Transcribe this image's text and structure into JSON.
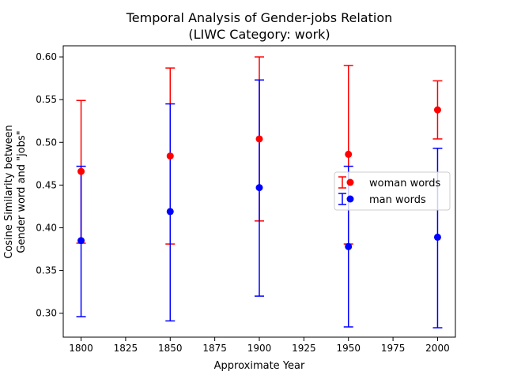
{
  "chart_data": {
    "type": "scatter",
    "title_lines": [
      "Temporal Analysis of Gender-jobs Relation",
      "(LIWC Category: work)"
    ],
    "xlabel": "Approximate Year",
    "ylabel_lines": [
      "Cosine Similarity between",
      "Gender word and \"jobs\""
    ],
    "xlim": [
      1790,
      2010
    ],
    "ylim": [
      0.272,
      0.613
    ],
    "xticks": [
      1800,
      1825,
      1850,
      1875,
      1900,
      1925,
      1950,
      1975,
      2000
    ],
    "xtick_labels": [
      "1800",
      "1825",
      "1850",
      "1875",
      "1900",
      "1925",
      "1950",
      "1975",
      "2000"
    ],
    "yticks": [
      0.3,
      0.35,
      0.4,
      0.45,
      0.5,
      0.55,
      0.6
    ],
    "ytick_labels": [
      "0.30",
      "0.35",
      "0.40",
      "0.45",
      "0.50",
      "0.55",
      "0.60"
    ],
    "grid": false,
    "legend_position": "center-right",
    "series": [
      {
        "name": "woman words",
        "color": "#ff0000",
        "points": [
          {
            "x": 1800,
            "y": 0.466,
            "low": 0.382,
            "high": 0.549
          },
          {
            "x": 1850,
            "y": 0.484,
            "low": 0.381,
            "high": 0.587
          },
          {
            "x": 1900,
            "y": 0.504,
            "low": 0.408,
            "high": 0.6
          },
          {
            "x": 1950,
            "y": 0.486,
            "low": 0.381,
            "high": 0.59
          },
          {
            "x": 2000,
            "y": 0.538,
            "low": 0.504,
            "high": 0.572
          }
        ]
      },
      {
        "name": "man words",
        "color": "#0000ff",
        "points": [
          {
            "x": 1800,
            "y": 0.385,
            "low": 0.296,
            "high": 0.472
          },
          {
            "x": 1850,
            "y": 0.419,
            "low": 0.291,
            "high": 0.545
          },
          {
            "x": 1900,
            "y": 0.447,
            "low": 0.32,
            "high": 0.573
          },
          {
            "x": 1950,
            "y": 0.378,
            "low": 0.284,
            "high": 0.472
          },
          {
            "x": 2000,
            "y": 0.389,
            "low": 0.283,
            "high": 0.493
          }
        ]
      }
    ]
  }
}
